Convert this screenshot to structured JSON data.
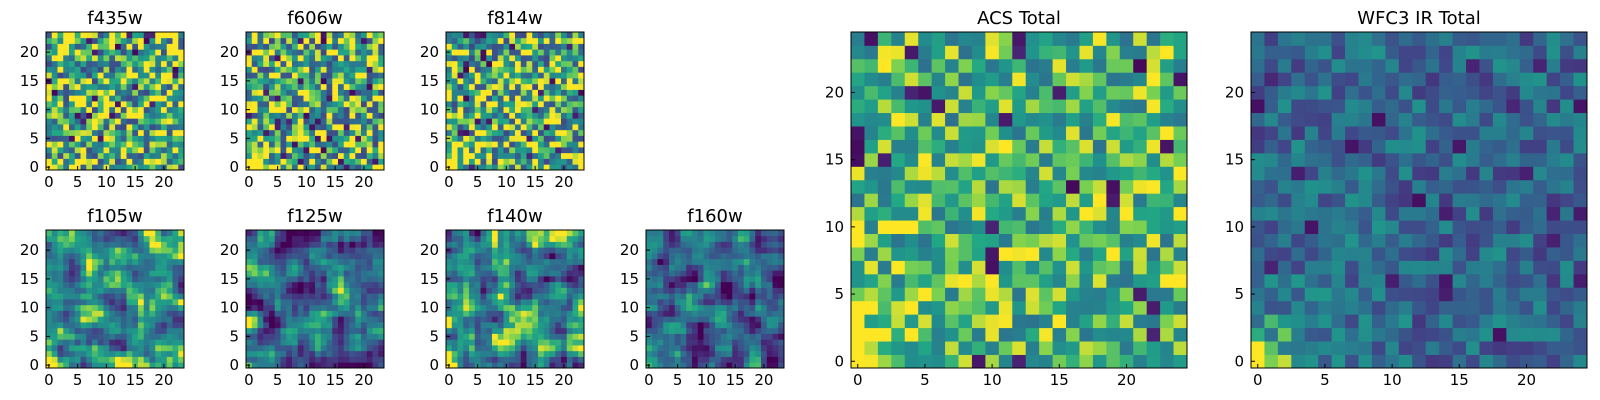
{
  "figure": {
    "background": "#ffffff",
    "colormap": "viridis"
  },
  "chart_data": [
    {
      "id": "f435w",
      "type": "heatmap",
      "title": "f435w",
      "grid": "24x24",
      "xlim": [
        0,
        24
      ],
      "ylim": [
        0,
        24
      ],
      "xticks": [
        0,
        5,
        10,
        15,
        20
      ],
      "yticks": [
        0,
        5,
        10,
        15,
        20
      ],
      "character": "noisy-bright",
      "seed": 11
    },
    {
      "id": "f606w",
      "type": "heatmap",
      "title": "f606w",
      "grid": "24x24",
      "xlim": [
        0,
        24
      ],
      "ylim": [
        0,
        24
      ],
      "xticks": [
        0,
        5,
        10,
        15,
        20
      ],
      "yticks": [
        0,
        5,
        10,
        15,
        20
      ],
      "character": "noisy-bright",
      "seed": 23
    },
    {
      "id": "f814w",
      "type": "heatmap",
      "title": "f814w",
      "grid": "24x24",
      "xlim": [
        0,
        24
      ],
      "ylim": [
        0,
        24
      ],
      "xticks": [
        0,
        5,
        10,
        15,
        20
      ],
      "yticks": [
        0,
        5,
        10,
        15,
        20
      ],
      "character": "noisy-bright",
      "seed": 37
    },
    {
      "id": "f105w",
      "type": "heatmap",
      "title": "f105w",
      "grid": "24x24",
      "xlim": [
        0,
        24
      ],
      "ylim": [
        0,
        24
      ],
      "xticks": [
        0,
        5,
        10,
        15,
        20
      ],
      "yticks": [
        0,
        5,
        10,
        15,
        20
      ],
      "character": "smooth-mid",
      "seed": 41
    },
    {
      "id": "f125w",
      "type": "heatmap",
      "title": "f125w",
      "grid": "24x24",
      "xlim": [
        0,
        24
      ],
      "ylim": [
        0,
        24
      ],
      "xticks": [
        0,
        5,
        10,
        15,
        20
      ],
      "yticks": [
        0,
        5,
        10,
        15,
        20
      ],
      "character": "smooth-dark",
      "seed": 53
    },
    {
      "id": "f140w",
      "type": "heatmap",
      "title": "f140w",
      "grid": "24x24",
      "xlim": [
        0,
        24
      ],
      "ylim": [
        0,
        24
      ],
      "xticks": [
        0,
        5,
        10,
        15,
        20
      ],
      "yticks": [
        0,
        5,
        10,
        15,
        20
      ],
      "character": "smooth-mid",
      "seed": 67
    },
    {
      "id": "f160w",
      "type": "heatmap",
      "title": "f160w",
      "grid": "24x24",
      "xlim": [
        0,
        24
      ],
      "ylim": [
        0,
        24
      ],
      "xticks": [
        0,
        5,
        10,
        15,
        20
      ],
      "yticks": [
        0,
        5,
        10,
        15,
        20
      ],
      "character": "smooth-dark",
      "seed": 79
    },
    {
      "id": "acs-total",
      "type": "heatmap",
      "title": "ACS Total",
      "grid": "25x25",
      "xlim": [
        0,
        25
      ],
      "ylim": [
        0,
        25
      ],
      "xticks": [
        0,
        5,
        10,
        15,
        20
      ],
      "yticks": [
        0,
        5,
        10,
        15,
        20
      ],
      "character": "coarse-bright",
      "seed": 97
    },
    {
      "id": "wfc3-ir-total",
      "type": "heatmap",
      "title": "WFC3 IR Total",
      "grid": "25x25",
      "xlim": [
        0,
        25
      ],
      "ylim": [
        0,
        25
      ],
      "xticks": [
        0,
        5,
        10,
        15,
        20
      ],
      "yticks": [
        0,
        5,
        10,
        15,
        20
      ],
      "character": "coarse-dark",
      "seed": 101
    }
  ]
}
